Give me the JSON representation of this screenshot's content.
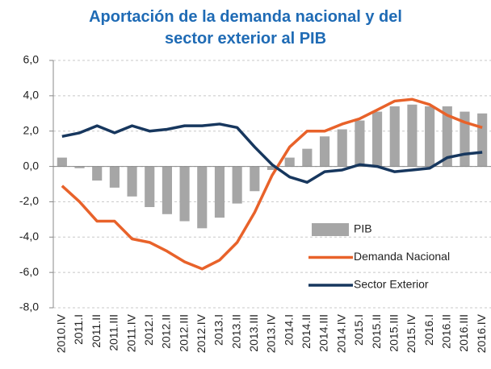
{
  "chart_data": {
    "type": "bar_line",
    "title": "Aportación de la demanda nacional y del sector exterior al PIB",
    "categories": [
      "2010.IV",
      "2011.I",
      "2011.II",
      "2011.III",
      "2011.IV",
      "2012.I",
      "2012.II",
      "2012.III",
      "2012.IV",
      "2013.I",
      "2013.II",
      "2013.III",
      "2013.IV",
      "2014.I",
      "2014.II",
      "2014.III",
      "2014.IV",
      "2015.I",
      "2015.II",
      "2015.III",
      "2015.IV",
      "2016.I",
      "2016.II",
      "2016.III",
      "2016.IV"
    ],
    "series": [
      {
        "name": "PIB",
        "type": "bar",
        "color": "#a6a6a6",
        "values": [
          0.5,
          -0.1,
          -0.8,
          -1.2,
          -1.7,
          -2.3,
          -2.7,
          -3.1,
          -3.5,
          -2.9,
          -2.1,
          -1.4,
          -0.2,
          0.5,
          1.0,
          1.7,
          2.1,
          2.6,
          3.1,
          3.4,
          3.5,
          3.4,
          3.4,
          3.1,
          3.0
        ]
      },
      {
        "name": "Demanda Nacional",
        "type": "line",
        "color": "#e8622a",
        "values": [
          -1.1,
          -2.0,
          -3.1,
          -3.1,
          -4.1,
          -4.3,
          -4.8,
          -5.4,
          -5.8,
          -5.3,
          -4.3,
          -2.6,
          -0.5,
          1.1,
          2.0,
          2.0,
          2.4,
          2.7,
          3.2,
          3.7,
          3.8,
          3.5,
          2.9,
          2.5,
          2.2
        ]
      },
      {
        "name": "Sector Exterior",
        "type": "line",
        "color": "#17375e",
        "values": [
          1.7,
          1.9,
          2.3,
          1.9,
          2.3,
          2.0,
          2.1,
          2.3,
          2.3,
          2.4,
          2.2,
          1.1,
          0.1,
          -0.6,
          -0.9,
          -0.3,
          -0.2,
          0.1,
          0.0,
          -0.3,
          -0.2,
          -0.1,
          0.5,
          0.7,
          0.8
        ]
      }
    ],
    "ylim": [
      -8,
      6
    ],
    "yticks": [
      {
        "value": -8,
        "label": "-8,0"
      },
      {
        "value": -6,
        "label": "-6,0"
      },
      {
        "value": -4,
        "label": "-4,0"
      },
      {
        "value": -2,
        "label": "-2,0"
      },
      {
        "value": 0,
        "label": "0,0"
      },
      {
        "value": 2,
        "label": "2,0"
      },
      {
        "value": 4,
        "label": "4,0"
      },
      {
        "value": 6,
        "label": "6,0"
      }
    ],
    "grid": true,
    "legend": "lower-right"
  }
}
